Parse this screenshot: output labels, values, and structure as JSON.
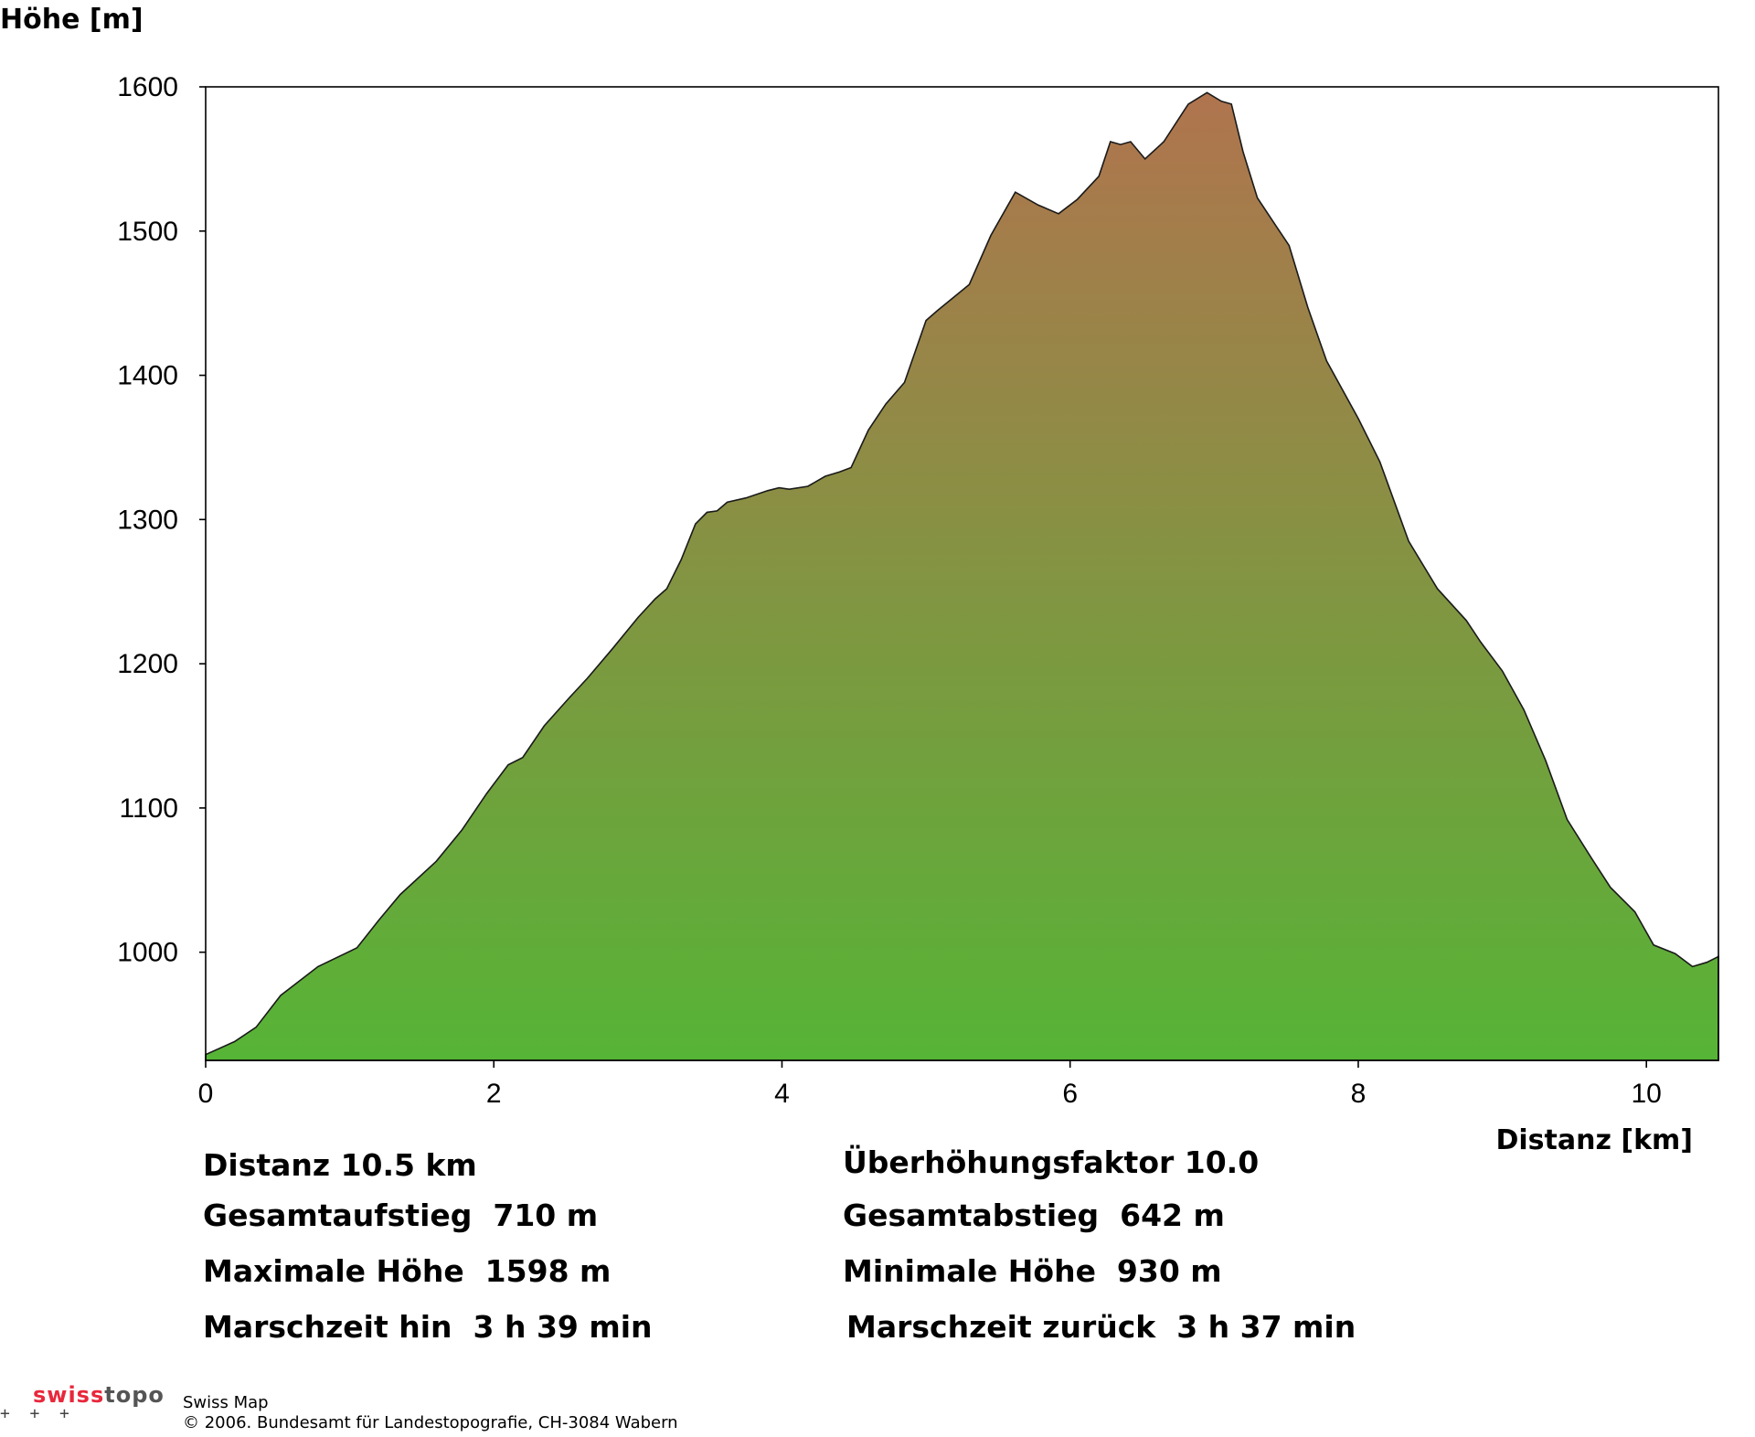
{
  "chart_data": {
    "type": "area",
    "ylabel": "Höhe [m]",
    "xlabel": "Distanz [km]",
    "xlim": [
      0,
      10.5
    ],
    "ylim": [
      925,
      1600
    ],
    "x_ticks": [
      0,
      2,
      4,
      6,
      8,
      10
    ],
    "y_ticks": [
      1000,
      1100,
      1200,
      1300,
      1400,
      1500,
      1600
    ],
    "grid": false,
    "fill_gradient": {
      "top": "#b0744e",
      "bottom": "#56b436"
    },
    "outline_color": "#1a1a1a",
    "series": [
      {
        "x": [
          0,
          0.2,
          0.35,
          0.52,
          0.78,
          1.05,
          1.2,
          1.35,
          1.6,
          1.78,
          1.95,
          2.1,
          2.2,
          2.35,
          2.52,
          2.65,
          2.82,
          3.0,
          3.12,
          3.2,
          3.3,
          3.4,
          3.48,
          3.55,
          3.62,
          3.75,
          3.9,
          3.98,
          4.05,
          4.18,
          4.3,
          4.4,
          4.48,
          4.6,
          4.72,
          4.85,
          5.0,
          5.08,
          5.3,
          5.45,
          5.62,
          5.78,
          5.92,
          6.05,
          6.2,
          6.28,
          6.35,
          6.42,
          6.52,
          6.65,
          6.82,
          6.95,
          7.05,
          7.12,
          7.2,
          7.3,
          7.42,
          7.52,
          7.65,
          7.78,
          8.0,
          8.15,
          8.35,
          8.55,
          8.75,
          8.85,
          9.0,
          9.15,
          9.3,
          9.45,
          9.62,
          9.75,
          9.92,
          10.05,
          10.2,
          10.32,
          10.42,
          10.5
        ],
        "y": [
          929,
          938,
          948,
          970,
          990,
          1003,
          1022,
          1040,
          1063,
          1085,
          1110,
          1130,
          1135,
          1157,
          1176,
          1190,
          1210,
          1232,
          1245,
          1252,
          1272,
          1297,
          1305,
          1306,
          1312,
          1315,
          1320,
          1322,
          1321,
          1323,
          1330,
          1333,
          1336,
          1362,
          1380,
          1395,
          1438,
          1445,
          1463,
          1497,
          1527,
          1518,
          1512,
          1522,
          1538,
          1562,
          1560,
          1562,
          1550,
          1562,
          1588,
          1596,
          1590,
          1588,
          1555,
          1523,
          1505,
          1490,
          1447,
          1410,
          1370,
          1340,
          1285,
          1252,
          1230,
          1215,
          1195,
          1168,
          1133,
          1092,
          1065,
          1045,
          1028,
          1005,
          999,
          990,
          993,
          997
        ]
      }
    ]
  },
  "stats": {
    "distanz": "Distanz 10.5 km",
    "ueberhoehung": "Überhöhungsfaktor 10.0",
    "aufstieg": "Gesamtaufstieg  710 m",
    "abstieg": "Gesamtabstieg  642 m",
    "max_hoehe": "Maximale Höhe  1598 m",
    "min_hoehe": "Minimale Höhe  930 m",
    "marsch_hin": "Marschzeit hin  3 h 39 min",
    "marsch_zurueck": "Marschzeit zurück  3 h 37 min"
  },
  "footer": {
    "brand_swiss": "swiss",
    "brand_topo": "topo",
    "product": "Swiss Map",
    "copyright": "© 2006. Bundesamt für Landestopografie, CH-3084 Wabern",
    "crosses": "+  +  +"
  }
}
